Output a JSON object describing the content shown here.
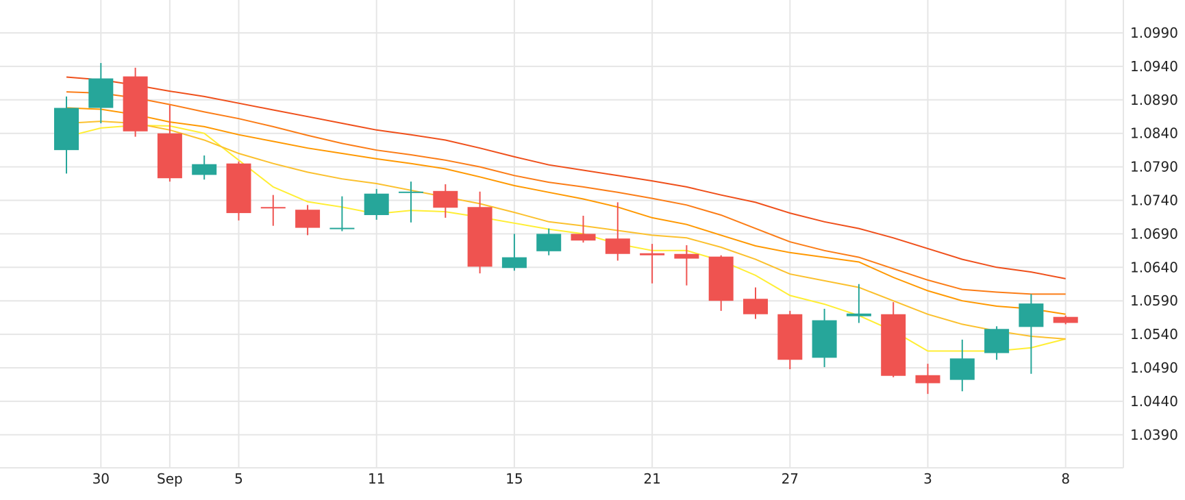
{
  "chart_data": {
    "type": "candlestick",
    "title": "",
    "xlabel": "",
    "ylabel": "",
    "x_ticks": [
      {
        "label": "30",
        "index": 1
      },
      {
        "label": "Sep",
        "index": 3
      },
      {
        "label": "5",
        "index": 5
      },
      {
        "label": "11",
        "index": 9
      },
      {
        "label": "15",
        "index": 13
      },
      {
        "label": "21",
        "index": 17
      },
      {
        "label": "27",
        "index": 21
      },
      {
        "label": "3",
        "index": 25
      },
      {
        "label": "8",
        "index": 29
      }
    ],
    "y_ticks": [
      "1.0990",
      "1.0940",
      "1.0890",
      "1.0840",
      "1.0790",
      "1.0740",
      "1.0690",
      "1.0640",
      "1.0590",
      "1.0540",
      "1.0490",
      "1.0440",
      "1.0390"
    ],
    "ylim": [
      1.0345,
      1.104
    ],
    "grid": true,
    "colors": {
      "up": "#26a69a",
      "down": "#ef5350",
      "grid": "#e6e6e6"
    },
    "candles": [
      {
        "o": 1.0815,
        "h": 1.0895,
        "l": 1.078,
        "c": 1.0878
      },
      {
        "o": 1.0878,
        "h": 1.0945,
        "l": 1.0855,
        "c": 1.0922
      },
      {
        "o": 1.0925,
        "h": 1.0938,
        "l": 1.0835,
        "c": 1.0843
      },
      {
        "o": 1.084,
        "h": 1.0882,
        "l": 1.0768,
        "c": 1.0773
      },
      {
        "o": 1.0778,
        "h": 1.0807,
        "l": 1.0771,
        "c": 1.0794
      },
      {
        "o": 1.0795,
        "h": 1.0798,
        "l": 1.071,
        "c": 1.0721
      },
      {
        "o": 1.073,
        "h": 1.0748,
        "l": 1.0702,
        "c": 1.0729
      },
      {
        "o": 1.0726,
        "h": 1.0733,
        "l": 1.0688,
        "c": 1.0699
      },
      {
        "o": 1.0697,
        "h": 1.0746,
        "l": 1.0694,
        "c": 1.0699
      },
      {
        "o": 1.0718,
        "h": 1.0757,
        "l": 1.0711,
        "c": 1.075
      },
      {
        "o": 1.0752,
        "h": 1.0768,
        "l": 1.0707,
        "c": 1.0753
      },
      {
        "o": 1.0754,
        "h": 1.0764,
        "l": 1.0714,
        "c": 1.0729
      },
      {
        "o": 1.073,
        "h": 1.0753,
        "l": 1.0631,
        "c": 1.0641
      },
      {
        "o": 1.0639,
        "h": 1.069,
        "l": 1.0635,
        "c": 1.0655
      },
      {
        "o": 1.0664,
        "h": 1.0698,
        "l": 1.0658,
        "c": 1.069
      },
      {
        "o": 1.069,
        "h": 1.0717,
        "l": 1.0677,
        "c": 1.068
      },
      {
        "o": 1.0683,
        "h": 1.0737,
        "l": 1.065,
        "c": 1.066
      },
      {
        "o": 1.0661,
        "h": 1.0675,
        "l": 1.0616,
        "c": 1.0658
      },
      {
        "o": 1.066,
        "h": 1.0673,
        "l": 1.0613,
        "c": 1.0653
      },
      {
        "o": 1.0656,
        "h": 1.0658,
        "l": 1.0575,
        "c": 1.059
      },
      {
        "o": 1.0593,
        "h": 1.061,
        "l": 1.0563,
        "c": 1.057
      },
      {
        "o": 1.057,
        "h": 1.0575,
        "l": 1.0488,
        "c": 1.0502
      },
      {
        "o": 1.0505,
        "h": 1.0578,
        "l": 1.0491,
        "c": 1.0561
      },
      {
        "o": 1.0567,
        "h": 1.0615,
        "l": 1.0557,
        "c": 1.0571
      },
      {
        "o": 1.057,
        "h": 1.0588,
        "l": 1.0476,
        "c": 1.0478
      },
      {
        "o": 1.0479,
        "h": 1.0496,
        "l": 1.0451,
        "c": 1.0467
      },
      {
        "o": 1.0472,
        "h": 1.0532,
        "l": 1.0455,
        "c": 1.0504
      },
      {
        "o": 1.0512,
        "h": 1.0552,
        "l": 1.0502,
        "c": 1.0548
      },
      {
        "o": 1.0551,
        "h": 1.06,
        "l": 1.0481,
        "c": 1.0586
      },
      {
        "o": 1.0566,
        "h": 1.0568,
        "l": 1.0555,
        "c": 1.0557
      }
    ],
    "moving_averages": [
      {
        "color": "#ffee33",
        "values": [
          1.0835,
          1.0848,
          1.0852,
          1.0851,
          1.084,
          1.08,
          1.076,
          1.0738,
          1.073,
          1.072,
          1.0725,
          1.0723,
          1.0715,
          1.0706,
          1.0697,
          1.069,
          1.0675,
          1.0665,
          1.0665,
          1.065,
          1.0628,
          1.0598,
          1.0585,
          1.0568,
          1.0545,
          1.0515,
          1.0515,
          1.0515,
          1.052,
          1.0533
        ]
      },
      {
        "color": "#fbc02d",
        "values": [
          1.0855,
          1.0858,
          1.0855,
          1.0845,
          1.083,
          1.081,
          1.0795,
          1.0782,
          1.0772,
          1.0765,
          1.0755,
          1.0745,
          1.0735,
          1.0722,
          1.0708,
          1.0702,
          1.0695,
          1.0688,
          1.0684,
          1.067,
          1.0652,
          1.063,
          1.062,
          1.061,
          1.059,
          1.057,
          1.0555,
          1.0545,
          1.0537,
          1.0533
        ]
      },
      {
        "color": "#ff9800",
        "values": [
          1.0878,
          1.0876,
          1.0868,
          1.0857,
          1.085,
          1.0838,
          1.0828,
          1.0818,
          1.081,
          1.0802,
          1.0795,
          1.0787,
          1.0775,
          1.0762,
          1.0752,
          1.0742,
          1.073,
          1.0714,
          1.0704,
          1.0688,
          1.0672,
          1.0662,
          1.0655,
          1.0648,
          1.0625,
          1.0605,
          1.059,
          1.0582,
          1.0578,
          1.057
        ]
      },
      {
        "color": "#fb7c16",
        "values": [
          1.0902,
          1.09,
          1.0893,
          1.0883,
          1.0872,
          1.0862,
          1.085,
          1.0837,
          1.0825,
          1.0815,
          1.0808,
          1.08,
          1.079,
          1.0777,
          1.0767,
          1.076,
          1.0752,
          1.0743,
          1.0733,
          1.0718,
          1.0698,
          1.0678,
          1.0665,
          1.0655,
          1.0638,
          1.0621,
          1.0607,
          1.0603,
          1.06,
          1.06
        ]
      },
      {
        "color": "#ef4f1a",
        "values": [
          1.0924,
          1.092,
          1.0912,
          1.0903,
          1.0895,
          1.0885,
          1.0875,
          1.0865,
          1.0855,
          1.0845,
          1.0838,
          1.083,
          1.0818,
          1.0805,
          1.0793,
          1.0785,
          1.0777,
          1.0769,
          1.076,
          1.0748,
          1.0737,
          1.0721,
          1.0708,
          1.0698,
          1.0684,
          1.0668,
          1.0652,
          1.064,
          1.0633,
          1.0623
        ]
      }
    ]
  }
}
